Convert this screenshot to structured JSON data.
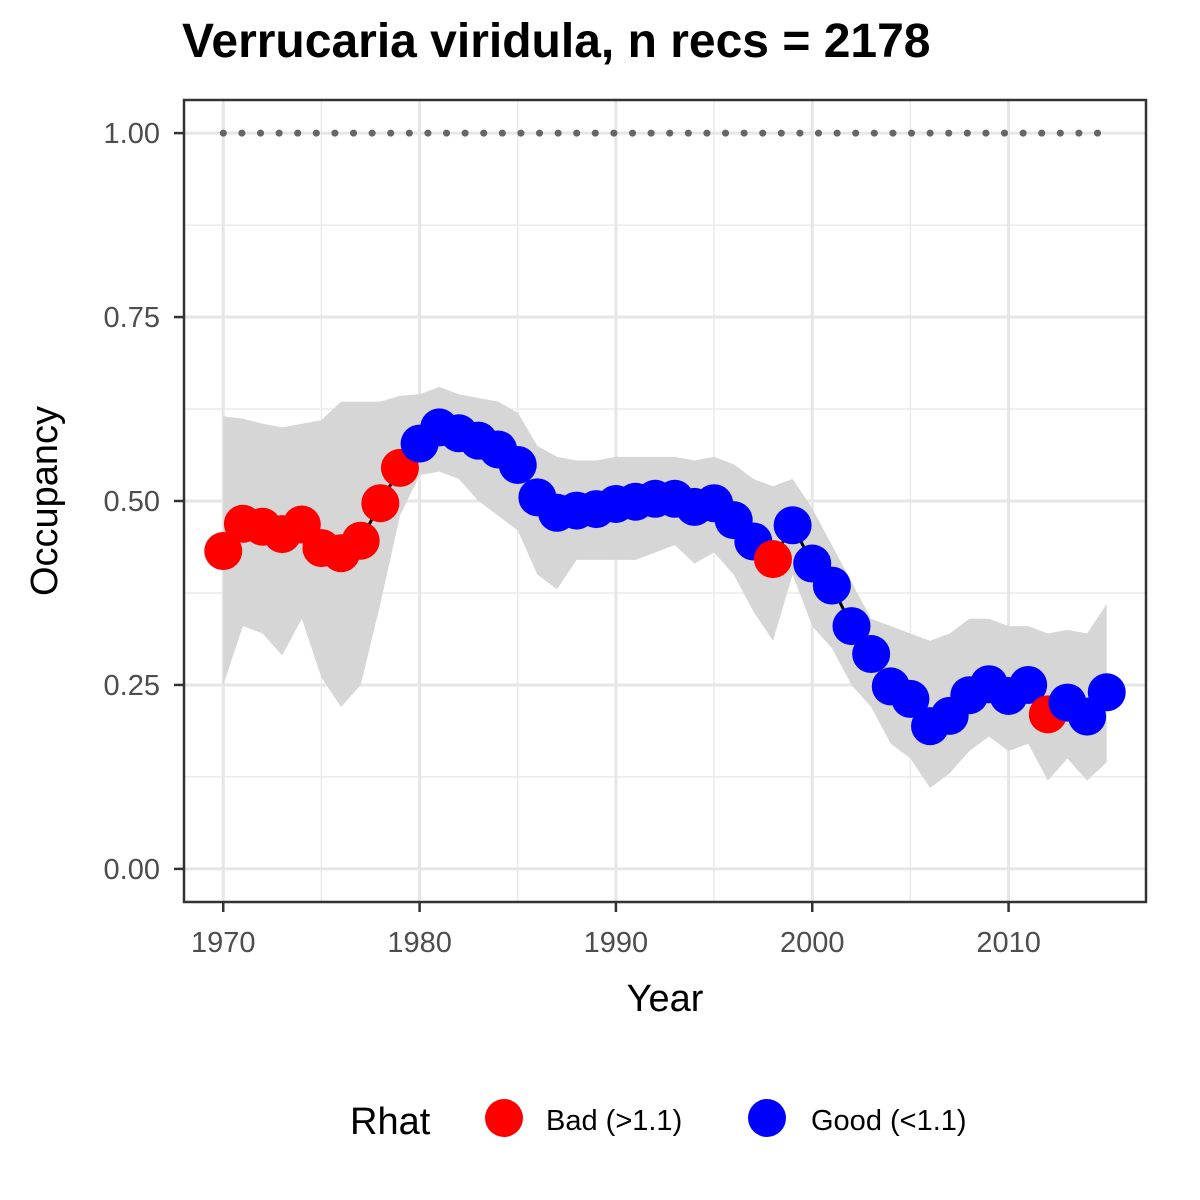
{
  "chart_data": {
    "type": "line",
    "title": "Verrucaria viridula, n recs = 2178",
    "xlabel": "Year",
    "ylabel": "Occupancy",
    "xlim": [
      1968,
      2017
    ],
    "ylim": [
      -0.045,
      1.045
    ],
    "xticks": [
      1970,
      1980,
      1990,
      2000,
      2010
    ],
    "xtick_labels": [
      "1970",
      "1980",
      "1990",
      "2000",
      "2010"
    ],
    "yticks": [
      0.0,
      0.25,
      0.5,
      0.75,
      1.0
    ],
    "ytick_labels": [
      "0.00",
      "0.25",
      "0.50",
      "0.75",
      "1.00"
    ],
    "grid": true,
    "legend": {
      "title": "Rhat",
      "position": "bottom",
      "entries": [
        {
          "label": "Bad (>1.1)",
          "color": "#ff0000"
        },
        {
          "label": "Good (<1.1)",
          "color": "#0000ff"
        }
      ]
    },
    "reference_line": {
      "y": 1.0,
      "style": "dotted",
      "color": "#666666"
    },
    "ribbon_color": "#d6d6d6",
    "line_color": "#000000",
    "series": [
      {
        "x": [
          1970,
          1971,
          1972,
          1973,
          1974,
          1975,
          1976,
          1977,
          1978,
          1979,
          1980,
          1981,
          1982,
          1983,
          1984,
          1985,
          1986,
          1987,
          1988,
          1989,
          1990,
          1991,
          1992,
          1993,
          1994,
          1995,
          1996,
          1997,
          1998,
          1999,
          2000,
          2001,
          2002,
          2003,
          2004,
          2005,
          2006,
          2007,
          2008,
          2009,
          2010,
          2011,
          2012,
          2013,
          2014,
          2015
        ],
        "y": [
          0.432,
          0.469,
          0.465,
          0.455,
          0.468,
          0.436,
          0.429,
          0.446,
          0.497,
          0.545,
          0.578,
          0.6,
          0.592,
          0.582,
          0.57,
          0.549,
          0.505,
          0.484,
          0.487,
          0.489,
          0.496,
          0.499,
          0.503,
          0.503,
          0.492,
          0.497,
          0.474,
          0.445,
          0.421,
          0.467,
          0.415,
          0.385,
          0.33,
          0.292,
          0.248,
          0.231,
          0.194,
          0.208,
          0.236,
          0.251,
          0.235,
          0.25,
          0.21,
          0.226,
          0.207,
          0.24
        ],
        "lower": [
          0.25,
          0.33,
          0.32,
          0.29,
          0.34,
          0.26,
          0.22,
          0.25,
          0.36,
          0.48,
          0.535,
          0.54,
          0.53,
          0.5,
          0.48,
          0.46,
          0.4,
          0.38,
          0.42,
          0.42,
          0.42,
          0.42,
          0.43,
          0.44,
          0.415,
          0.43,
          0.4,
          0.35,
          0.31,
          0.4,
          0.33,
          0.3,
          0.25,
          0.22,
          0.17,
          0.15,
          0.11,
          0.13,
          0.16,
          0.18,
          0.16,
          0.17,
          0.12,
          0.15,
          0.12,
          0.145
        ],
        "upper": [
          0.615,
          0.612,
          0.605,
          0.6,
          0.605,
          0.61,
          0.635,
          0.635,
          0.635,
          0.643,
          0.645,
          0.655,
          0.645,
          0.64,
          0.635,
          0.62,
          0.575,
          0.56,
          0.555,
          0.555,
          0.56,
          0.56,
          0.56,
          0.56,
          0.555,
          0.56,
          0.55,
          0.53,
          0.52,
          0.53,
          0.49,
          0.44,
          0.39,
          0.34,
          0.33,
          0.32,
          0.31,
          0.32,
          0.34,
          0.34,
          0.33,
          0.33,
          0.32,
          0.325,
          0.32,
          0.36
        ],
        "rhat": [
          "Bad",
          "Bad",
          "Bad",
          "Bad",
          "Bad",
          "Bad",
          "Bad",
          "Bad",
          "Bad",
          "Bad",
          "Good",
          "Good",
          "Good",
          "Good",
          "Good",
          "Good",
          "Good",
          "Good",
          "Good",
          "Good",
          "Good",
          "Good",
          "Good",
          "Good",
          "Good",
          "Good",
          "Good",
          "Good",
          "Bad",
          "Good",
          "Good",
          "Good",
          "Good",
          "Good",
          "Good",
          "Good",
          "Good",
          "Good",
          "Good",
          "Good",
          "Good",
          "Good",
          "Bad",
          "Good",
          "Good",
          "Good"
        ]
      }
    ]
  }
}
